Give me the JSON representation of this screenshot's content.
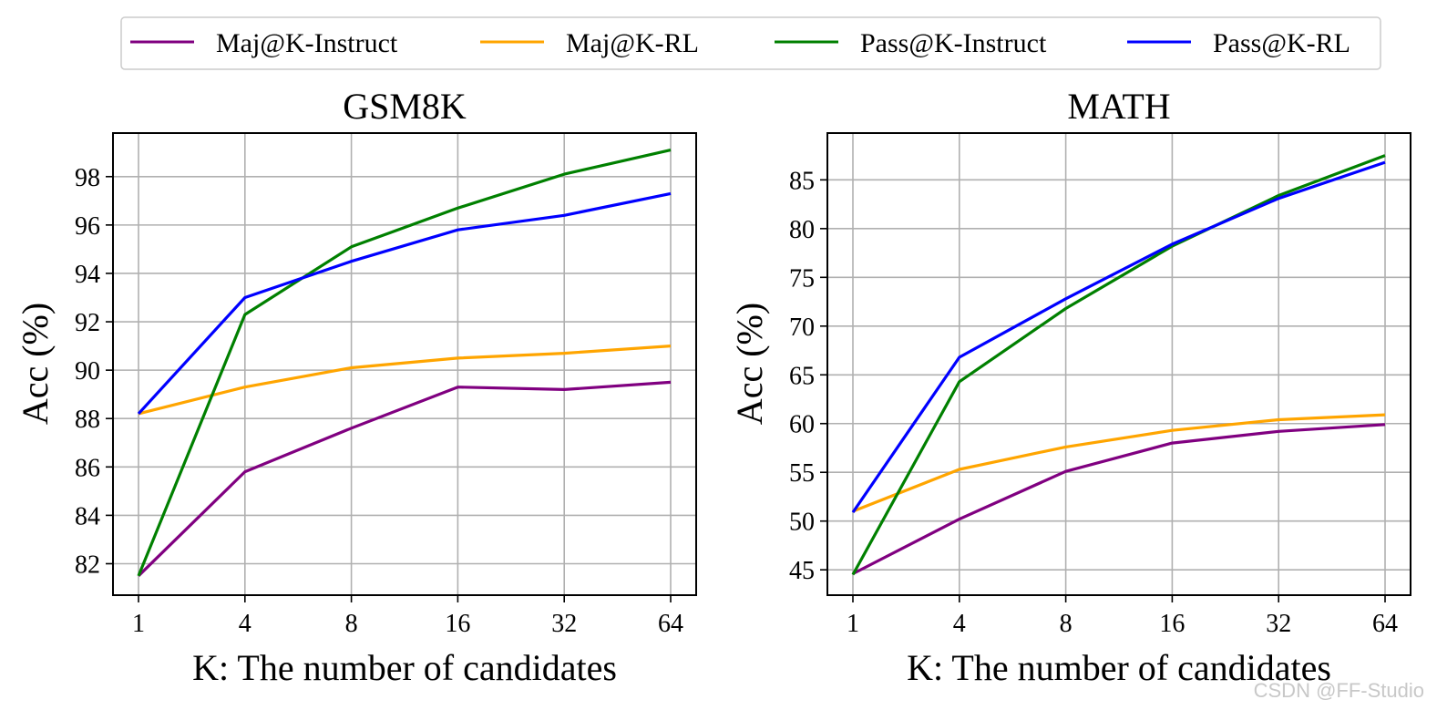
{
  "legend": {
    "placement": "top-center",
    "entries": [
      {
        "label": "Maj@K-Instruct",
        "color": "#800080"
      },
      {
        "label": "Maj@K-RL",
        "color": "#FFA500"
      },
      {
        "label": "Pass@K-Instruct",
        "color": "#008000"
      },
      {
        "label": "Pass@K-RL",
        "color": "#0000FF"
      }
    ]
  },
  "watermark": "CSDN @FF-Studio",
  "chart_data": [
    {
      "type": "line",
      "title": "GSM8K",
      "xlabel": "K: The number of candidates",
      "ylabel": "Acc (%)",
      "categories": [
        "1",
        "4",
        "8",
        "16",
        "32",
        "64"
      ],
      "yticks": [
        82,
        84,
        86,
        88,
        90,
        92,
        94,
        96,
        98
      ],
      "ylim": [
        80.7,
        99.8
      ],
      "grid": true,
      "series": [
        {
          "name": "Maj@K-Instruct",
          "color": "#800080",
          "values": [
            81.5,
            85.8,
            87.6,
            89.3,
            89.2,
            89.5
          ]
        },
        {
          "name": "Maj@K-RL",
          "color": "#FFA500",
          "values": [
            88.2,
            89.3,
            90.1,
            90.5,
            90.7,
            91.0
          ]
        },
        {
          "name": "Pass@K-Instruct",
          "color": "#008000",
          "values": [
            81.5,
            92.3,
            95.1,
            96.7,
            98.1,
            99.1
          ]
        },
        {
          "name": "Pass@K-RL",
          "color": "#0000FF",
          "values": [
            88.2,
            93.0,
            94.5,
            95.8,
            96.4,
            97.3
          ]
        }
      ]
    },
    {
      "type": "line",
      "title": "MATH",
      "xlabel": "K: The number of candidates",
      "ylabel": "Acc (%)",
      "categories": [
        "1",
        "4",
        "8",
        "16",
        "32",
        "64"
      ],
      "yticks": [
        45,
        50,
        55,
        60,
        65,
        70,
        75,
        80,
        85
      ],
      "ylim": [
        42.4,
        89.8
      ],
      "grid": true,
      "series": [
        {
          "name": "Maj@K-Instruct",
          "color": "#800080",
          "values": [
            44.6,
            50.2,
            55.1,
            58.0,
            59.2,
            59.9
          ]
        },
        {
          "name": "Maj@K-RL",
          "color": "#FFA500",
          "values": [
            51.0,
            55.3,
            57.6,
            59.3,
            60.4,
            60.9
          ]
        },
        {
          "name": "Pass@K-Instruct",
          "color": "#008000",
          "values": [
            44.5,
            64.3,
            71.8,
            78.2,
            83.4,
            87.5
          ]
        },
        {
          "name": "Pass@K-RL",
          "color": "#0000FF",
          "values": [
            50.9,
            66.8,
            72.8,
            78.4,
            83.1,
            86.8
          ]
        }
      ]
    }
  ]
}
